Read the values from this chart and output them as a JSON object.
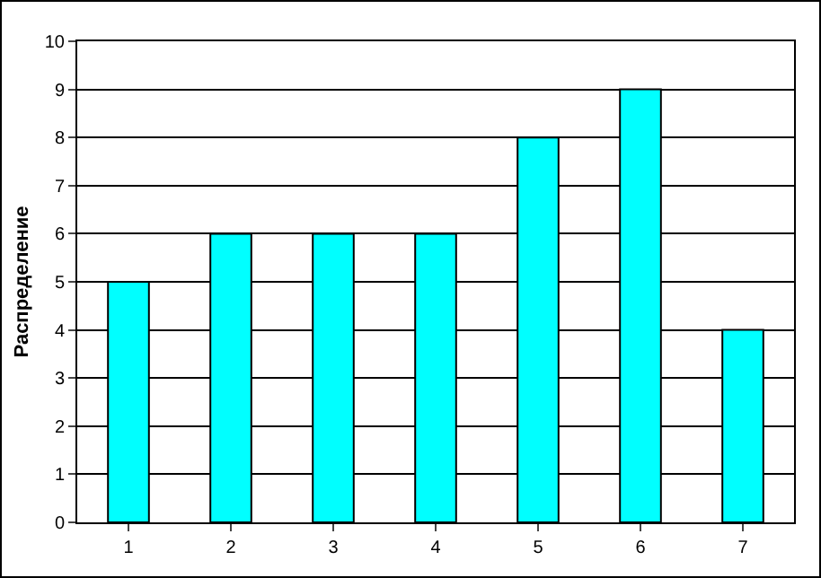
{
  "chart_data": {
    "type": "bar",
    "ylabel": "Распределение",
    "categories": [
      "1",
      "2",
      "3",
      "4",
      "5",
      "6",
      "7"
    ],
    "values": [
      5,
      6,
      6,
      6,
      8,
      9,
      4
    ],
    "color": "#00ffff",
    "ylim": [
      0,
      10
    ],
    "yticks": [
      0,
      1,
      2,
      3,
      4,
      5,
      6,
      7,
      8,
      9,
      10
    ],
    "grid": "y"
  }
}
